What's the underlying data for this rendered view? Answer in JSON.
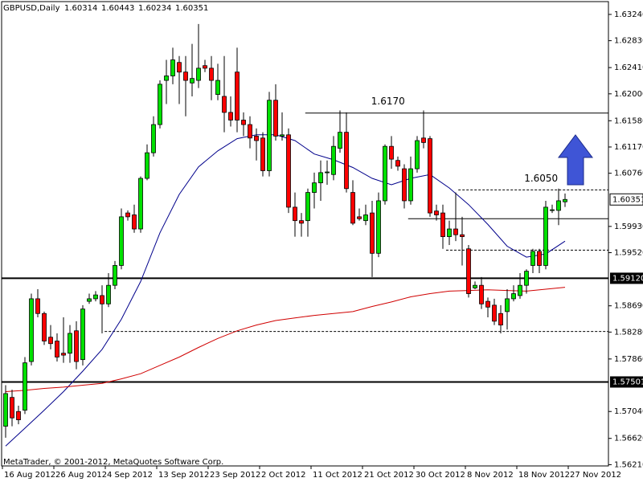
{
  "chart_data": {
    "type": "candlestick",
    "title": "GBPUSD,Daily",
    "footer": "MetaTrader, © 2001-2012, MetaQuotes Software Corp.",
    "up_color": "#00e000",
    "down_color": "#ff0000",
    "ylim": [
      1.5619,
      1.6344
    ],
    "yticks": [
      {
        "value": 1.6324,
        "label": "1.63240"
      },
      {
        "value": 1.6283,
        "label": "1.62830"
      },
      {
        "value": 1.6241,
        "label": "1.62410"
      },
      {
        "value": 1.62,
        "label": "1.62000"
      },
      {
        "value": 1.6158,
        "label": "1.61580"
      },
      {
        "value": 1.6117,
        "label": "1.61170"
      },
      {
        "value": 1.6076,
        "label": "1.60760"
      },
      {
        "value": 1.5993,
        "label": "1.59930"
      },
      {
        "value": 1.5952,
        "label": "1.59520"
      },
      {
        "value": 1.5869,
        "label": "1.58690"
      },
      {
        "value": 1.5828,
        "label": "1.58280"
      },
      {
        "value": 1.5786,
        "label": "1.57860"
      },
      {
        "value": 1.5704,
        "label": "1.57040"
      },
      {
        "value": 1.5662,
        "label": "1.56620"
      },
      {
        "value": 1.5621,
        "label": "1.56210"
      }
    ],
    "xticks": [
      {
        "value": 0,
        "label": "16 Aug 2012"
      },
      {
        "value": 8,
        "label": "26 Aug 2012"
      },
      {
        "value": 16,
        "label": "4 Sep 2012"
      },
      {
        "value": 24,
        "label": "13 Sep 2012"
      },
      {
        "value": 32,
        "label": "23 Sep 2012"
      },
      {
        "value": 40,
        "label": "2 Oct 2012"
      },
      {
        "value": 48,
        "label": "11 Oct 2012"
      },
      {
        "value": 56,
        "label": "21 Oct 2012"
      },
      {
        "value": 64,
        "label": "30 Oct 2012"
      },
      {
        "value": 72,
        "label": "8 Nov 2012"
      },
      {
        "value": 80,
        "label": "18 Nov 2012"
      },
      {
        "value": 88,
        "label": "27 Nov 2012"
      }
    ],
    "open": [
      1.5681,
      1.5726,
      1.5704,
      1.5706,
      1.5782,
      1.588,
      1.5857,
      1.582,
      1.5814,
      1.5795,
      1.5795,
      1.583,
      1.5785,
      1.5876,
      1.588,
      1.5885,
      1.5872,
      1.5901,
      1.5932,
      1.6014,
      1.6011,
      1.5989,
      1.6068,
      1.6108,
      1.6152,
      1.6221,
      1.6228,
      1.6249,
      1.6234,
      1.6217,
      1.6221,
      1.6244,
      1.624,
      1.6199,
      1.6196,
      1.6171,
      1.6234,
      1.6159,
      1.6152,
      1.6134,
      1.6131,
      1.608,
      1.619,
      1.6134,
      1.6136,
      1.6023,
      1.6002,
      1.6002,
      1.6046,
      1.6061,
      1.6077,
      1.6074,
      1.6115,
      1.614,
      1.6046,
      1.6008,
      1.6002,
      1.6014,
      1.5951,
      1.6033,
      1.6118,
      1.6096,
      1.6083,
      1.6033,
      1.6083,
      1.6131,
      1.613,
      1.6017,
      1.6014,
      1.5977,
      1.5989,
      1.598,
      1.5958,
      1.5897,
      1.5901,
      1.5876,
      1.587,
      1.5857,
      1.586,
      1.588,
      1.5885,
      1.5901,
      1.5932,
      1.5954,
      1.5932,
      1.6018,
      1.6018,
      1.60314
    ],
    "high": [
      1.5745,
      1.5738,
      1.5713,
      1.5789,
      1.5888,
      1.5895,
      1.586,
      1.5839,
      1.5826,
      1.5851,
      1.5839,
      1.5845,
      1.587,
      1.5888,
      1.5892,
      1.5901,
      1.592,
      1.5939,
      1.6021,
      1.6018,
      1.6027,
      1.6071,
      1.6121,
      1.6165,
      1.6221,
      1.6253,
      1.6272,
      1.6259,
      1.6259,
      1.6278,
      1.6309,
      1.6253,
      1.6259,
      1.6247,
      1.6259,
      1.6196,
      1.6272,
      1.6171,
      1.6165,
      1.6146,
      1.614,
      1.6203,
      1.6215,
      1.6171,
      1.6146,
      1.6046,
      1.6014,
      1.6052,
      1.6077,
      1.6096,
      1.6096,
      1.6134,
      1.6174,
      1.6171,
      1.6065,
      1.6021,
      1.6027,
      1.6033,
      1.6046,
      1.6121,
      1.6134,
      1.6102,
      1.609,
      1.6102,
      1.6134,
      1.6174,
      1.6134,
      1.6027,
      1.6027,
      1.6002,
      1.6046,
      1.6008,
      1.5964,
      1.5907,
      1.5914,
      1.5882,
      1.588,
      1.587,
      1.5895,
      1.5901,
      1.592,
      1.5926,
      1.5958,
      1.5958,
      1.6033,
      1.6027,
      1.6052,
      1.60443
    ],
    "low": [
      1.5663,
      1.5681,
      1.5684,
      1.57,
      1.5776,
      1.5851,
      1.5808,
      1.5801,
      1.5782,
      1.578,
      1.578,
      1.577,
      1.5776,
      1.5872,
      1.5876,
      1.5826,
      1.5867,
      1.5895,
      1.5926,
      1.6002,
      1.5983,
      1.5983,
      1.6065,
      1.6102,
      1.6146,
      1.6184,
      1.6215,
      1.6184,
      1.6165,
      1.6196,
      1.6209,
      1.6234,
      1.619,
      1.619,
      1.614,
      1.6149,
      1.614,
      1.6134,
      1.6115,
      1.6096,
      1.6071,
      1.6071,
      1.6127,
      1.6127,
      1.6014,
      1.5977,
      1.5977,
      1.5977,
      1.6021,
      1.6033,
      1.6058,
      1.6065,
      1.6108,
      1.6046,
      1.5995,
      1.6002,
      1.5995,
      1.5914,
      1.5945,
      1.6027,
      1.6083,
      1.608,
      1.6021,
      1.6027,
      1.6077,
      1.6115,
      1.6008,
      1.6002,
      1.5958,
      1.5964,
      1.597,
      1.5932,
      1.5882,
      1.5895,
      1.5864,
      1.5851,
      1.5839,
      1.5826,
      1.5832,
      1.5876,
      1.588,
      1.5888,
      1.592,
      1.592,
      1.5926,
      1.6014,
      1.5995,
      1.60234
    ],
    "close": [
      1.5732,
      1.5694,
      1.5691,
      1.578,
      1.588,
      1.5857,
      1.5814,
      1.581,
      1.5789,
      1.5792,
      1.5826,
      1.5782,
      1.5864,
      1.588,
      1.5886,
      1.5872,
      1.5901,
      1.5932,
      1.6008,
      1.6008,
      1.5989,
      1.6068,
      1.6108,
      1.6152,
      1.6215,
      1.6228,
      1.6253,
      1.6234,
      1.6221,
      1.6224,
      1.624,
      1.624,
      1.6221,
      1.6221,
      1.6171,
      1.6159,
      1.6159,
      1.6152,
      1.6131,
      1.6127,
      1.608,
      1.619,
      1.6134,
      1.6136,
      1.6023,
      1.6002,
      1.5998,
      1.6046,
      1.6061,
      1.6077,
      1.6078,
      1.6118,
      1.614,
      1.6052,
      1.5998,
      1.6005,
      1.6011,
      1.5951,
      1.6033,
      1.6118,
      1.6098,
      1.6087,
      1.6033,
      1.6083,
      1.6127,
      1.6124,
      1.6014,
      1.6011,
      1.5977,
      1.5989,
      1.598,
      1.5977,
      1.5888,
      1.5901,
      1.5872,
      1.5867,
      1.5845,
      1.5839,
      1.588,
      1.5888,
      1.5901,
      1.5923,
      1.5954,
      1.5932,
      1.6023,
      1.6019,
      1.6033,
      1.60351
    ],
    "overlays": [
      {
        "color": "#00008b",
        "x": [
          0,
          3,
          6,
          9,
          12,
          15,
          18,
          21,
          24,
          27,
          30,
          33,
          36,
          39,
          42,
          45,
          48,
          51,
          54,
          57,
          60,
          63,
          66,
          69,
          72,
          75,
          78,
          81,
          84,
          87
        ],
        "values": [
          1.565,
          1.5678,
          1.5706,
          1.5735,
          1.5767,
          1.5801,
          1.5848,
          1.5907,
          1.5983,
          1.6043,
          1.6086,
          1.6111,
          1.613,
          1.6136,
          1.6136,
          1.6127,
          1.6106,
          1.6097,
          1.6085,
          1.6068,
          1.6058,
          1.6068,
          1.6074,
          1.6053,
          1.6027,
          1.5996,
          1.5962,
          1.5945,
          1.595,
          1.597
        ]
      },
      {
        "color": "#d00000",
        "x": [
          0,
          3,
          6,
          9,
          12,
          15,
          18,
          21,
          24,
          27,
          30,
          33,
          36,
          39,
          42,
          45,
          48,
          51,
          54,
          57,
          60,
          63,
          66,
          69,
          72,
          75,
          78,
          81,
          84,
          87
        ],
        "values": [
          1.5735,
          1.5737,
          1.574,
          1.5742,
          1.5745,
          1.5748,
          1.5755,
          1.5763,
          1.5776,
          1.5789,
          1.5804,
          1.5818,
          1.583,
          1.5839,
          1.5846,
          1.585,
          1.5854,
          1.5857,
          1.586,
          1.5868,
          1.5875,
          1.5883,
          1.5888,
          1.5892,
          1.5893,
          1.5894,
          1.5893,
          1.5892,
          1.5895,
          1.5898
        ]
      }
    ],
    "levels": [
      {
        "value": 1.617,
        "label": "1.6170",
        "style": "solid",
        "x_start": 46.6
      },
      {
        "value": 1.605,
        "label": "1.6050",
        "style": "dashed",
        "x_start": 70.4
      },
      {
        "value": 1.6005,
        "style": "solid",
        "x_start": 62.6
      },
      {
        "value": 1.5956,
        "style": "dashed",
        "x_start": 68.5
      },
      {
        "value": 1.5912,
        "tag": "1.59120",
        "style": "thick"
      },
      {
        "value": 1.5829,
        "style": "dashed",
        "x_start": 15.4
      },
      {
        "value": 1.57501,
        "tag": "1.57501",
        "style": "thick"
      }
    ]
  }
}
